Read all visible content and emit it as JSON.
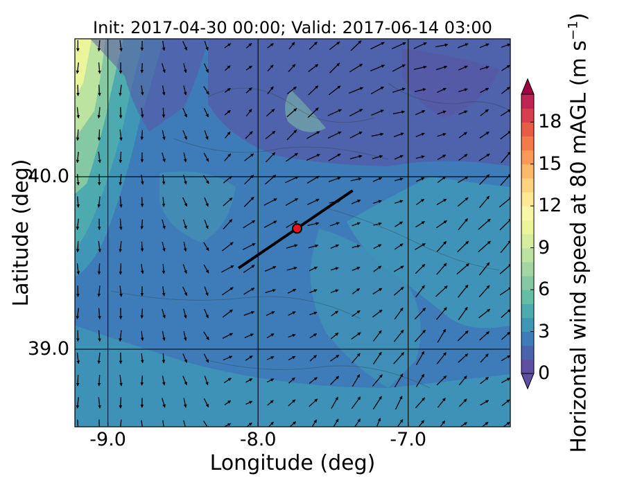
{
  "title": "Init: 2017-04-30 00:00; Valid: 2017-06-14 03:00",
  "axes": {
    "xlabel": "Longitude (deg)",
    "ylabel": "Latitude (deg)",
    "x_ticks": [
      {
        "value": -9.0,
        "label": "-9.0"
      },
      {
        "value": -8.0,
        "label": "-8.0"
      },
      {
        "value": -7.0,
        "label": "-7.0"
      }
    ],
    "y_ticks": [
      {
        "value": 40.0,
        "label": "40.0"
      },
      {
        "value": 39.0,
        "label": "39.0"
      }
    ],
    "xlim": [
      -9.22,
      -6.32
    ],
    "ylim": [
      38.55,
      40.8
    ],
    "gridlines": true
  },
  "colorbar": {
    "label_main": "Horizontal wind speed at 80 mAGL (m s",
    "label_exp": "−1",
    "label_close": ")",
    "range": [
      0,
      20
    ],
    "level_step": 1,
    "extend": "both",
    "ticks": [
      {
        "value": 0,
        "label": "0"
      },
      {
        "value": 3,
        "label": "3"
      },
      {
        "value": 6,
        "label": "6"
      },
      {
        "value": 9,
        "label": "9"
      },
      {
        "value": 12,
        "label": "12"
      },
      {
        "value": 15,
        "label": "15"
      },
      {
        "value": 18,
        "label": "18"
      }
    ],
    "colors": [
      "#5e4fa2",
      "#4a63ad",
      "#3d7cb8",
      "#3f96b7",
      "#4daaaf",
      "#66bda5",
      "#84c9a3",
      "#a2d6a3",
      "#bde3a1",
      "#d6ee9b",
      "#ebf59a",
      "#f8f7a7",
      "#fee895",
      "#fdd280",
      "#fcb86a",
      "#f99a59",
      "#f47a4c",
      "#e85c46",
      "#d73f4e",
      "#bf2552"
    ],
    "under_color": "#5e4fa2",
    "over_color": "#9e0142"
  },
  "map": {
    "site_marker": {
      "lon": -7.74,
      "lat": 39.7,
      "color": "#e8141a"
    },
    "transect": {
      "start": [
        -8.13,
        39.47
      ],
      "end": [
        -7.37,
        39.92
      ],
      "color": "#000000"
    },
    "wind_field": {
      "lon_range": [
        -9.2,
        -6.35
      ],
      "lat_range": [
        38.56,
        40.76
      ],
      "grid_cols": 21,
      "grid_rows": 18,
      "arrow_color": "#000000"
    }
  }
}
